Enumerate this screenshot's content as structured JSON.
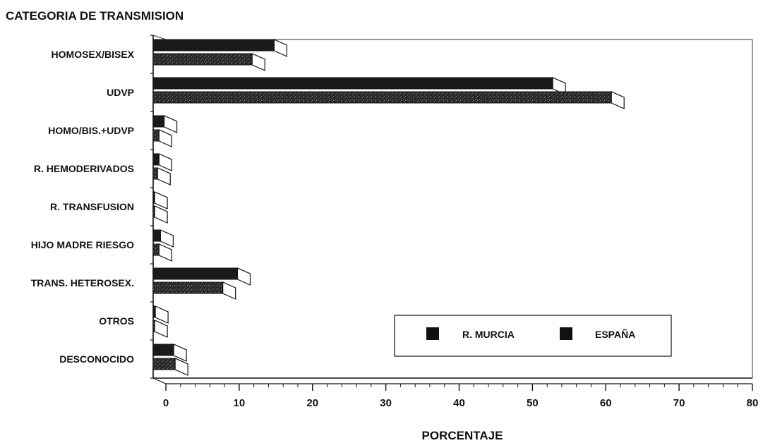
{
  "chart_data": {
    "type": "bar",
    "orientation": "horizontal",
    "style": "3d",
    "title": "CATEGORIA DE TRANSMISION",
    "xlabel": "PORCENTAJE",
    "ylabel": "",
    "xlim": [
      0,
      80
    ],
    "xticks": [
      "0",
      "10",
      "20",
      "30",
      "40",
      "50",
      "60",
      "70",
      "80"
    ],
    "legend_position": "lower-right",
    "grid": false,
    "categories": [
      "HOMOSEX/BISEX",
      "UDVP",
      "HOMO/BIS.+UDVP",
      "R. HEMODERIVADOS",
      "R. TRANSFUSION",
      "HIJO MADRE RIESGO",
      "TRANS. HETEROSEX.",
      "OTROS",
      "DESCONOCIDO"
    ],
    "series": [
      {
        "name": "R. MURCIA",
        "color": "#1a1a1a",
        "values": [
          16.5,
          54.5,
          1.5,
          0.8,
          0.2,
          1.0,
          11.5,
          0.3,
          2.8
        ]
      },
      {
        "name": "ESPAÑA",
        "color": "#3a3a3a",
        "values": [
          13.5,
          62.5,
          0.8,
          0.6,
          0.2,
          0.8,
          9.5,
          0.2,
          3.0
        ]
      }
    ]
  }
}
